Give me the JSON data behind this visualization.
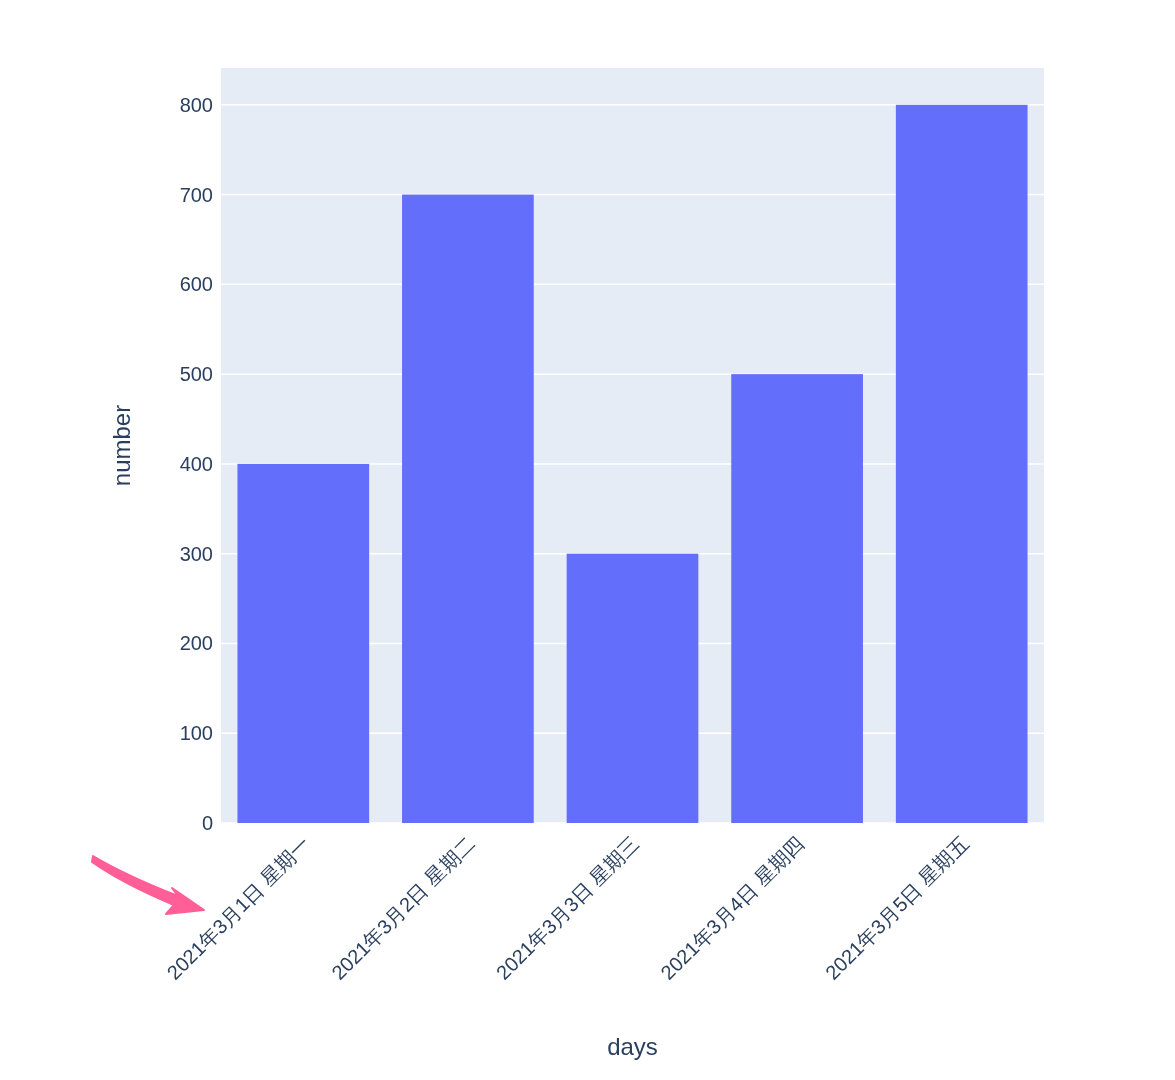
{
  "chart_data": {
    "type": "bar",
    "xlabel": "days",
    "ylabel": "number",
    "categories": [
      "2021年3月1日 星期一",
      "2021年3月2日 星期二",
      "2021年3月3日 星期三",
      "2021年3月4日 星期四",
      "2021年3月5日 星期五"
    ],
    "values": [
      400,
      700,
      300,
      500,
      800
    ],
    "color": "#636efa",
    "ylim": [
      0,
      841
    ],
    "yticks": [
      0,
      100,
      200,
      300,
      400,
      500,
      600,
      700,
      800
    ],
    "grid": "y"
  }
}
